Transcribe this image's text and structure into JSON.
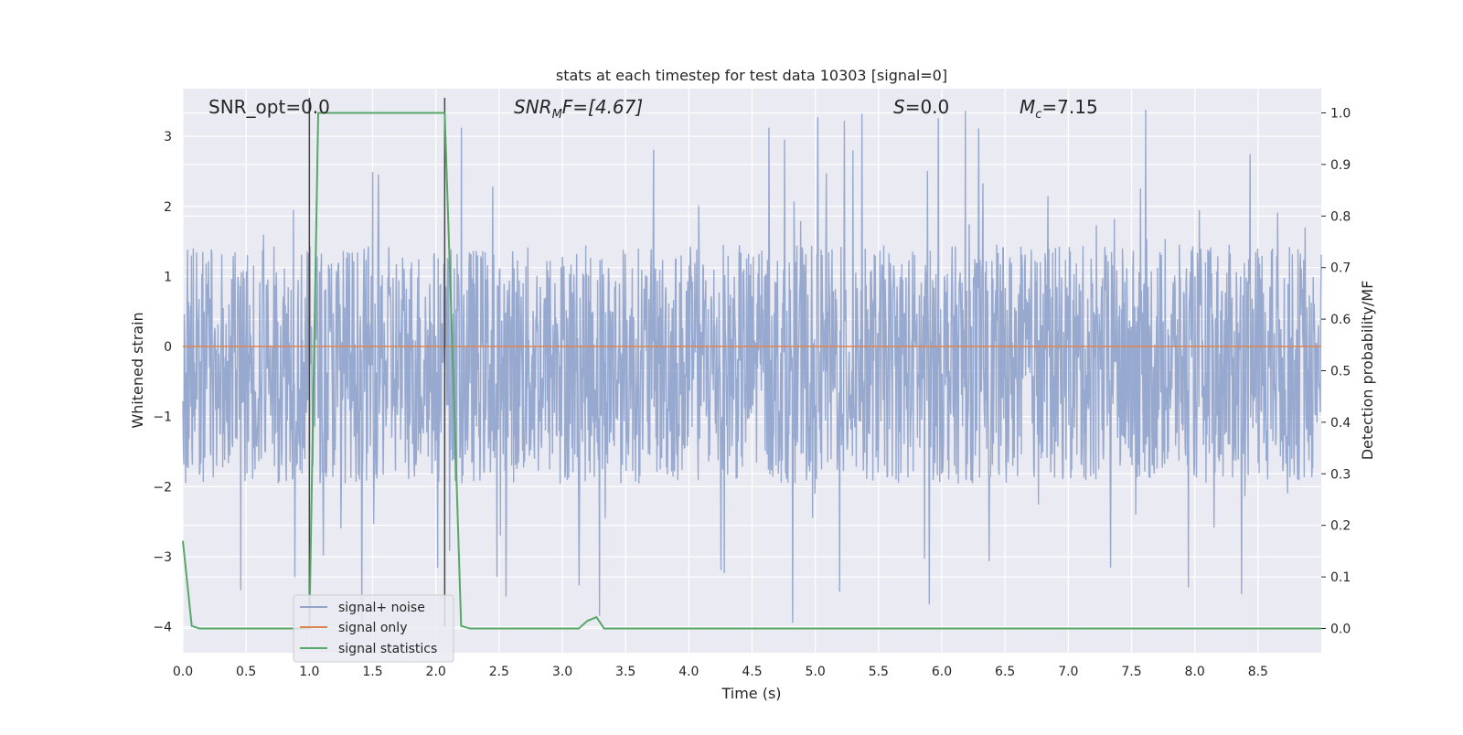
{
  "chart_data": {
    "type": "line",
    "title": "stats at each timestep for test data 10303 [signal=0]",
    "xlabel": "Time (s)",
    "ylabel_left": "Whitened strain",
    "ylabel_right": "Detection probability/MF",
    "xlim": [
      0.0,
      9.0
    ],
    "ylim_left": [
      -4.37,
      3.68
    ],
    "ylim_right": [
      -0.047,
      1.047
    ],
    "xticks": [
      "0.0",
      "0.5",
      "1.0",
      "1.5",
      "2.0",
      "2.5",
      "3.0",
      "3.5",
      "4.0",
      "4.5",
      "5.0",
      "5.5",
      "6.0",
      "6.5",
      "7.0",
      "7.5",
      "8.0",
      "8.5"
    ],
    "yticks_left": [
      "3",
      "2",
      "1",
      "0",
      "−1",
      "−2",
      "−3",
      "−4"
    ],
    "yticks_right": [
      "1.0",
      "0.9",
      "0.8",
      "0.7",
      "0.6",
      "0.5",
      "0.4",
      "0.3",
      "0.2",
      "0.1",
      "0.0"
    ],
    "grid": true,
    "legend_position": "lower-left",
    "series": [
      {
        "name": "signal+ noise",
        "color": "#92a5cc",
        "style": "dense noise, roughly within [-1.8, 1.3] with spikes to about 3.5 and -4.0",
        "approx_envelope": {
          "typical_upper": 1.3,
          "typical_lower": -1.8,
          "max": 3.5,
          "min": -4.0
        }
      },
      {
        "name": "signal only",
        "color": "#dd8452",
        "x": [
          0.0,
          9.0
        ],
        "y": [
          0.0,
          0.0
        ]
      },
      {
        "name": "signal statistics",
        "color": "#55a868",
        "axis": "right",
        "x": [
          0.0,
          0.07,
          0.13,
          0.93,
          1.0,
          1.07,
          1.13,
          1.87,
          1.93,
          2.0,
          2.07,
          2.13,
          2.2,
          2.27,
          3.13,
          3.2,
          3.27,
          3.33,
          9.0
        ],
        "y": [
          0.17,
          0.005,
          0.0,
          0.0,
          0.0,
          1.0,
          1.0,
          1.0,
          1.0,
          1.0,
          1.0,
          0.55,
          0.005,
          0.0,
          0.0,
          0.015,
          0.022,
          0.0,
          0.0
        ]
      }
    ],
    "vertical_markers": [
      {
        "x": 1.0,
        "color": "#444444"
      },
      {
        "x": 2.07,
        "color": "#444444"
      }
    ],
    "annotations": [
      {
        "key": "snr_opt",
        "text": "SNR_opt=0.0"
      },
      {
        "key": "snr_mf",
        "base": "SNR",
        "sub": "M",
        "rest": "F=[4.67]"
      },
      {
        "key": "s",
        "base": "S",
        "rest": "=0.0"
      },
      {
        "key": "mc",
        "base": "M",
        "sub": "c",
        "rest": "=7.15"
      }
    ]
  }
}
